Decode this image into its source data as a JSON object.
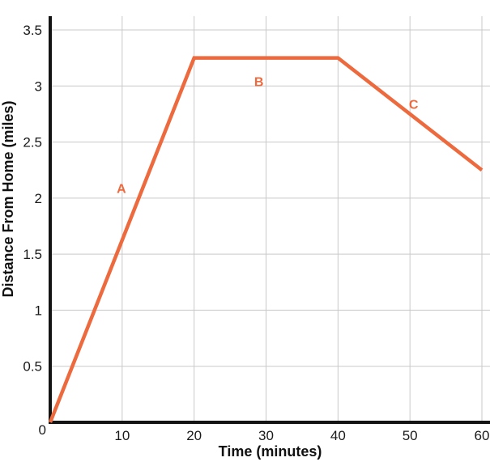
{
  "chart_data": {
    "type": "line",
    "title": "",
    "xlabel": "Time (minutes)",
    "ylabel": "Distance From Home (miles)",
    "x": [
      0,
      20,
      40,
      60
    ],
    "y": [
      0,
      3.25,
      3.25,
      2.25
    ],
    "points": [
      {
        "x": 0,
        "y": 0
      },
      {
        "x": 20,
        "y": 3.25
      },
      {
        "x": 40,
        "y": 3.25
      },
      {
        "x": 60,
        "y": 2.25
      }
    ],
    "xlim": [
      0,
      60
    ],
    "ylim": [
      0,
      3.5
    ],
    "x_ticks": [
      0,
      10,
      20,
      30,
      40,
      50,
      60
    ],
    "y_ticks": [
      0,
      0.5,
      1,
      1.5,
      2,
      2.5,
      3,
      3.5
    ],
    "x_tick_labels": [
      "0",
      "10",
      "20",
      "30",
      "40",
      "50",
      "60"
    ],
    "y_tick_labels": [
      "0",
      "0.5",
      "1",
      "1.5",
      "2",
      "2.5",
      "3",
      "3.5"
    ],
    "origin_label": "0",
    "grid": true,
    "legend": "none",
    "segment_labels": [
      {
        "text": "A",
        "x": 9.9,
        "y": 2.09
      },
      {
        "text": "B",
        "x": 29.0,
        "y": 3.04
      },
      {
        "text": "C",
        "x": 50.5,
        "y": 2.84
      }
    ],
    "colors": {
      "line": "#ED6A3E",
      "segment_label": "#ED6A3E",
      "axis": "#141414",
      "grid": "#c9c9c9",
      "tick_text": "#1a1a1a",
      "axis_title_text": "#111111",
      "background": "#ffffff"
    }
  }
}
